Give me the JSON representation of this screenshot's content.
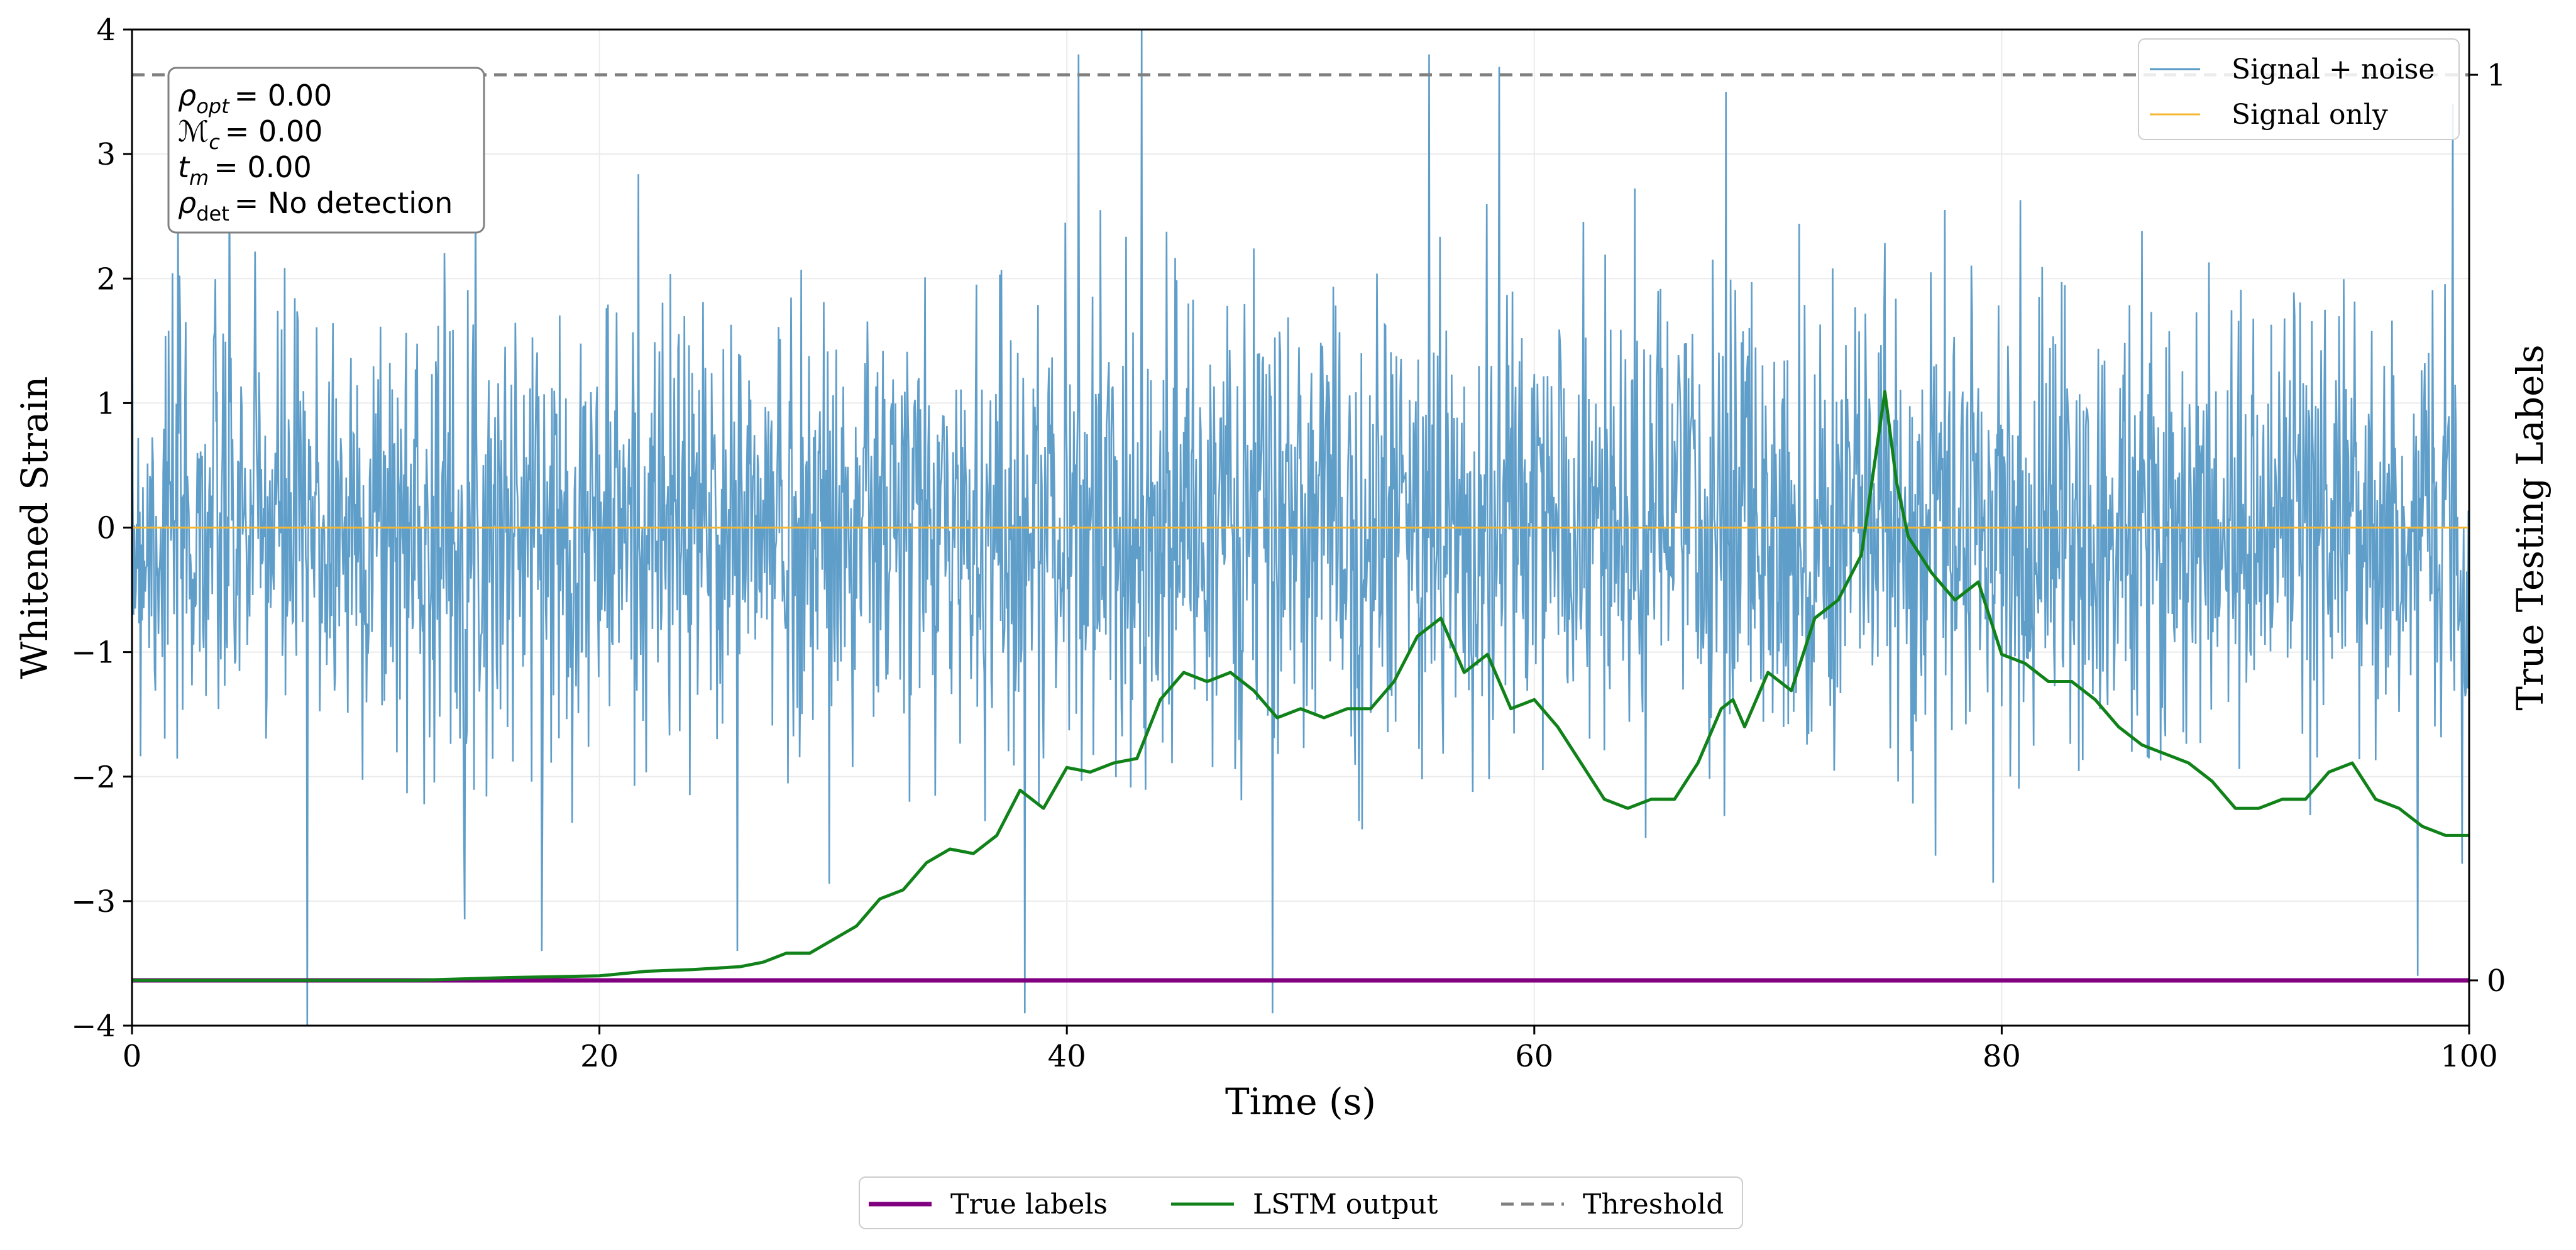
{
  "chart_data": {
    "type": "line",
    "xlabel": "Time (s)",
    "ylabel": "Whitened Strain",
    "y2label": "True Testing Labels",
    "xlim": [
      0,
      100
    ],
    "ylim": [
      -4,
      4
    ],
    "y2lim": [
      -0.05,
      1.05
    ],
    "xticks": [
      0,
      20,
      40,
      60,
      80,
      100
    ],
    "xtick_labels": [
      "0",
      "20",
      "40",
      "60",
      "80",
      "100"
    ],
    "yticks": [
      -4,
      -3,
      -2,
      -1,
      0,
      1,
      2,
      3,
      4
    ],
    "ytick_labels": [
      "−4",
      "−3",
      "−2",
      "−1",
      "0",
      "1",
      "2",
      "3",
      "4"
    ],
    "y2ticks": [
      0,
      1
    ],
    "y2tick_labels": [
      "0",
      "1"
    ],
    "grid": true,
    "series": [
      {
        "name": "Signal + noise",
        "color": "#5799c7",
        "style": "noise",
        "samples": 3000,
        "sigma": 0.9,
        "seed": 7,
        "spikes": [
          [
            7.5,
            -4.0
          ],
          [
            38.2,
            -3.9
          ],
          [
            40.5,
            3.8
          ],
          [
            43.2,
            4.0
          ],
          [
            48.8,
            -3.9
          ],
          [
            55.5,
            3.8
          ],
          [
            58.5,
            3.7
          ],
          [
            68.2,
            3.5
          ],
          [
            97.8,
            -3.6
          ],
          [
            99.3,
            3.4
          ]
        ]
      },
      {
        "name": "Signal only",
        "color": "#f5b731",
        "axis": "left",
        "x": [
          0,
          100
        ],
        "y": [
          0,
          0
        ]
      },
      {
        "name": "True labels",
        "color": "#800080",
        "axis": "right",
        "x": [
          0,
          100
        ],
        "y": [
          0,
          0
        ]
      },
      {
        "name": "LSTM output",
        "color": "#11821a",
        "axis": "right",
        "x": [
          0,
          12,
          16,
          20,
          22,
          24,
          26,
          27,
          28,
          29,
          30,
          31,
          32,
          33,
          34,
          35,
          36,
          37,
          38,
          39,
          40,
          41,
          42,
          43,
          44,
          45,
          46,
          47,
          48,
          49,
          50,
          51,
          52,
          53,
          54,
          55,
          56,
          57,
          58,
          59,
          60,
          61,
          62,
          63,
          64,
          65,
          66,
          67,
          68,
          68.5,
          69,
          70,
          71,
          72,
          73,
          74,
          75,
          75.5,
          76,
          77,
          78,
          79,
          80,
          81,
          82,
          83,
          84,
          85,
          86,
          87,
          88,
          89,
          90,
          91,
          92,
          93,
          94,
          95,
          96,
          97,
          98,
          99,
          100
        ],
        "y": [
          0.0,
          0.0,
          0.003,
          0.005,
          0.01,
          0.012,
          0.015,
          0.02,
          0.03,
          0.03,
          0.045,
          0.06,
          0.09,
          0.1,
          0.13,
          0.145,
          0.14,
          0.16,
          0.21,
          0.19,
          0.235,
          0.23,
          0.24,
          0.245,
          0.31,
          0.34,
          0.33,
          0.34,
          0.32,
          0.29,
          0.3,
          0.29,
          0.3,
          0.3,
          0.33,
          0.38,
          0.4,
          0.34,
          0.36,
          0.3,
          0.31,
          0.28,
          0.24,
          0.2,
          0.19,
          0.2,
          0.2,
          0.24,
          0.3,
          0.31,
          0.28,
          0.34,
          0.32,
          0.4,
          0.42,
          0.47,
          0.65,
          0.55,
          0.49,
          0.45,
          0.42,
          0.44,
          0.36,
          0.35,
          0.33,
          0.33,
          0.31,
          0.28,
          0.26,
          0.25,
          0.24,
          0.22,
          0.19,
          0.19,
          0.2,
          0.2,
          0.23,
          0.24,
          0.2,
          0.19,
          0.17,
          0.16,
          0.16
        ]
      },
      {
        "name": "Threshold",
        "color": "#808080",
        "axis": "right",
        "dashed": true,
        "x": [
          0,
          100
        ],
        "y": [
          1,
          1
        ]
      }
    ],
    "legend_top": {
      "placement": "top-right",
      "entries": [
        "Signal + noise",
        "Signal only"
      ]
    },
    "legend_bottom": {
      "placement": "bottom-center",
      "entries": [
        "True labels",
        "LSTM output",
        "Threshold"
      ]
    },
    "annotation": {
      "placement": "top-left",
      "lines": [
        {
          "sym": "ρ",
          "sub": "opt",
          "sub_italic": true,
          "value": "0.00"
        },
        {
          "sym": "ℳ",
          "sub": "c",
          "sub_italic": true,
          "value": "0.00"
        },
        {
          "sym": "t",
          "sub": "m",
          "sub_italic": true,
          "value": "0.00"
        },
        {
          "sym": "ρ",
          "sub": "det",
          "sub_italic": false,
          "value": "No detection"
        }
      ]
    }
  }
}
